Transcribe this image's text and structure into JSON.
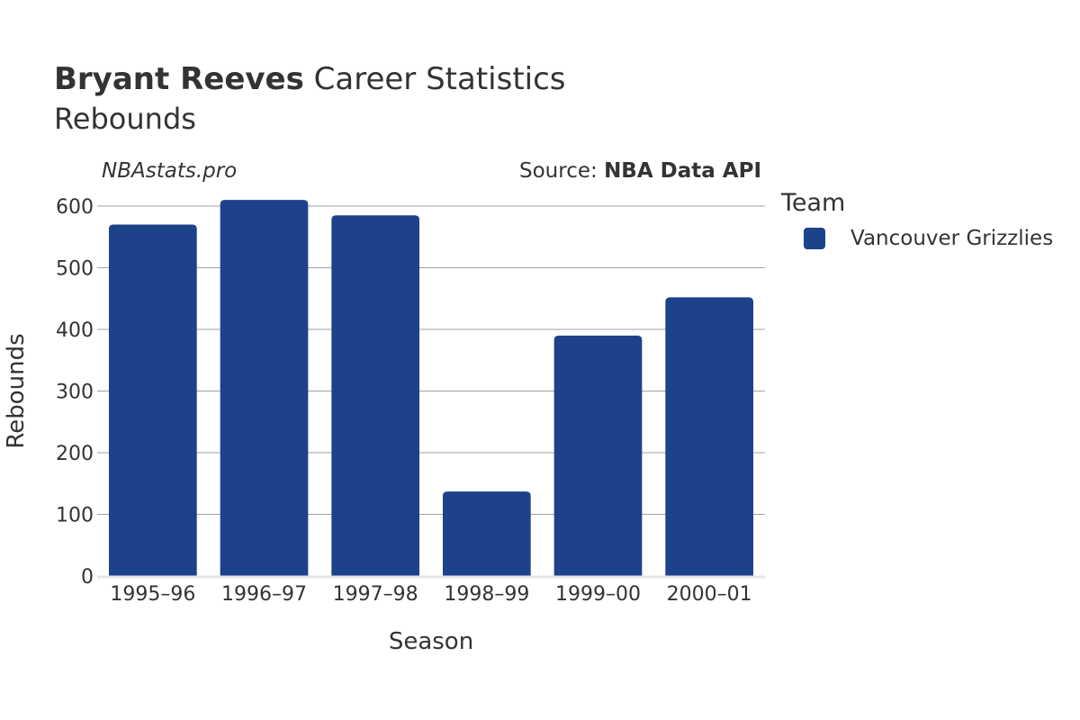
{
  "header": {
    "title_player": "Bryant Reeves",
    "title_rest": " Career Statistics",
    "subtitle": "Rebounds",
    "site": "NBAstats.pro",
    "source_prefix": "Source: ",
    "source_name": "NBA Data API"
  },
  "legend": {
    "title": "Team",
    "items": [
      {
        "label": "Vancouver Grizzlies",
        "color": "#1d428a"
      }
    ]
  },
  "chart_data": {
    "type": "bar",
    "categories": [
      "1995–96",
      "1996–97",
      "1997–98",
      "1998–99",
      "1999–00",
      "2000–01"
    ],
    "series": [
      {
        "name": "Vancouver Grizzlies",
        "values": [
          570,
          610,
          585,
          137,
          390,
          452
        ],
        "color": "#1d428a"
      }
    ],
    "xlabel": "Season",
    "ylabel": "Rebounds",
    "ylim": [
      0,
      600
    ],
    "yticks": [
      0,
      100,
      200,
      300,
      400,
      500,
      600
    ],
    "grid": true,
    "legend_position": "right"
  }
}
